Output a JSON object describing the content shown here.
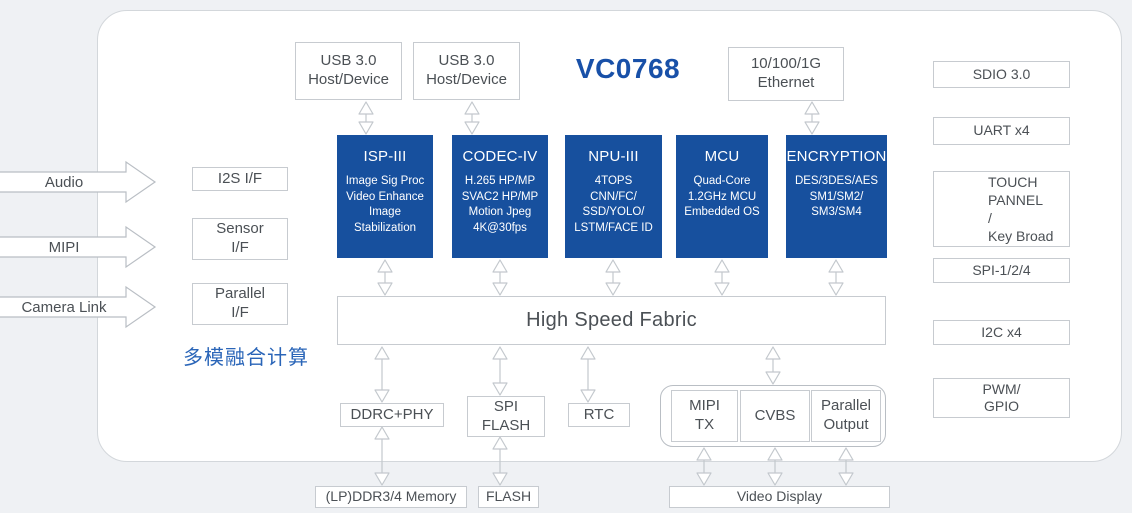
{
  "chip_title": "VC0768",
  "annotation_cn": "多模融合计算",
  "colors": {
    "core_blue": "#17509e",
    "title_blue": "#1850a8",
    "annotation_blue": "#2a65b8"
  },
  "top_boxes": {
    "usb1": "USB 3.0\nHost/Device",
    "usb2": "USB 3.0\nHost/Device",
    "ethernet": "10/100/1G\nEthernet"
  },
  "left_inputs": {
    "audio": "Audio",
    "mipi": "MIPI",
    "camera_link": "Camera Link"
  },
  "interface_boxes": {
    "i2s": "I2S I/F",
    "sensor": "Sensor\nI/F",
    "parallel": "Parallel\nI/F"
  },
  "cores": [
    {
      "title": "ISP-III",
      "body": "Image Sig Proc\nVideo Enhance\nImage\nStabilization"
    },
    {
      "title": "CODEC-IV",
      "body": "H.265 HP/MP\nSVAC2 HP/MP\nMotion Jpeg\n4K@30fps"
    },
    {
      "title": "NPU-III",
      "body": "4TOPS\nCNN/FC/\nSSD/YOLO/\nLSTM/FACE ID"
    },
    {
      "title": "MCU",
      "body": "Quad-Core\n1.2GHz MCU\nEmbedded OS"
    },
    {
      "title": "ENCRYPTION",
      "body": "DES/3DES/AES\nSM1/SM2/\nSM3/SM4"
    }
  ],
  "fabric_label": "High Speed Fabric",
  "bottom_blocks": {
    "ddrc": "DDRC+PHY",
    "spi_flash": "SPI\nFLASH",
    "rtc": "RTC",
    "mipi_tx": "MIPI\nTX",
    "cvbs": "CVBS",
    "parallel_out": "Parallel\nOutput"
  },
  "external_bottom": {
    "memory": "(LP)DDR3/4 Memory",
    "flash": "FLASH",
    "video_display": "Video Display"
  },
  "right_ports": [
    {
      "label": "SDIO 3.0"
    },
    {
      "label": "UART x4"
    },
    {
      "label": "TOUCH\nPANNEL\n/\nKey Broad"
    },
    {
      "label": "SPI-1/2/4"
    },
    {
      "label": "I2C x4"
    },
    {
      "label": "PWM/\nGPIO"
    }
  ]
}
